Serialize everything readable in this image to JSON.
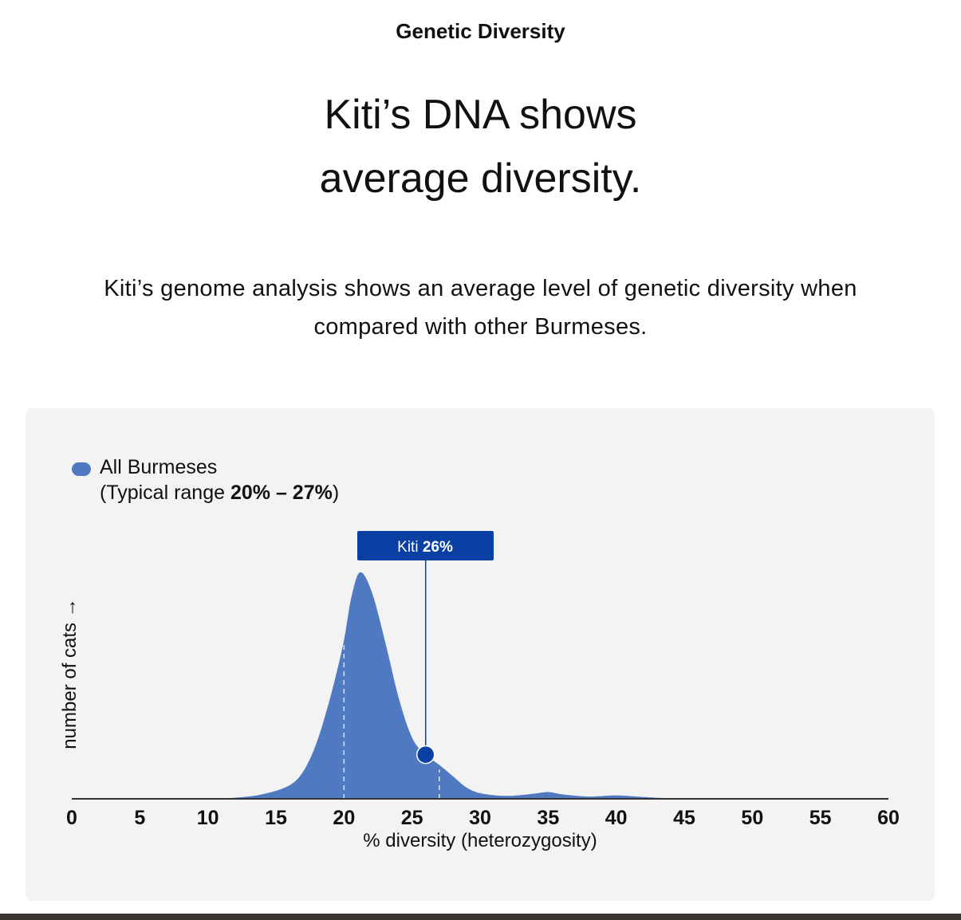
{
  "header": {
    "eyebrow": "Genetic Diversity",
    "title_line1": "Kiti’s DNA shows",
    "title_line2": "average diversity.",
    "description_line1": "Kiti’s genome analysis shows an average level of genetic diversity when",
    "description_line2": "compared with other Burmeses."
  },
  "colors": {
    "fill": "#4f79c0",
    "accent": "#0a40a4",
    "axis": "#333333",
    "card": "#f3f3f3"
  },
  "chart_data": {
    "type": "area",
    "xlabel": "% diversity (heterozygosity)",
    "ylabel": "number of cats →",
    "xlim": [
      0,
      60
    ],
    "xticks": [
      "0",
      "5",
      "10",
      "15",
      "20",
      "25",
      "30",
      "35",
      "40",
      "45",
      "50",
      "55",
      "60"
    ],
    "grid": false,
    "legend": {
      "placement": "top-left",
      "series": "All Burmeses",
      "range_prefix": "(Typical range ",
      "range_value": "20% – 27%",
      "range_suffix": ")"
    },
    "typical_range": [
      20,
      27
    ],
    "series": [
      {
        "name": "All Burmeses",
        "points": [
          [
            0,
            0
          ],
          [
            10,
            0
          ],
          [
            12,
            0.5
          ],
          [
            14,
            2
          ],
          [
            16,
            6
          ],
          [
            17,
            12
          ],
          [
            18,
            25
          ],
          [
            19,
            45
          ],
          [
            20,
            70
          ],
          [
            20.5,
            88
          ],
          [
            21.15,
            100
          ],
          [
            22,
            92
          ],
          [
            23,
            70
          ],
          [
            24,
            45
          ],
          [
            25,
            27
          ],
          [
            26,
            19.5
          ],
          [
            27,
            15
          ],
          [
            28,
            10
          ],
          [
            29,
            5
          ],
          [
            30,
            2.5
          ],
          [
            32,
            1.3
          ],
          [
            34,
            2.3
          ],
          [
            35,
            3
          ],
          [
            36,
            2
          ],
          [
            38,
            1
          ],
          [
            40,
            1.5
          ],
          [
            42,
            0.8
          ],
          [
            44,
            0.2
          ],
          [
            46,
            0
          ],
          [
            60,
            0
          ]
        ]
      }
    ],
    "marker": {
      "label": "Kiti",
      "value_label": "26%",
      "x": 26
    }
  }
}
